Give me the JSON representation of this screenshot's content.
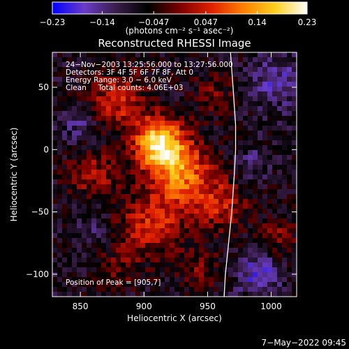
{
  "chart_data": {
    "type": "heatmap",
    "title": "Reconstructed RHESSI Image",
    "xlabel": "Heliocentric X (arcsec)",
    "ylabel": "Heliocentric Y (arcsec)",
    "xlim": [
      828,
      1020
    ],
    "ylim": [
      -118,
      78
    ],
    "x_ticks": [
      850,
      900,
      950,
      1000
    ],
    "y_ticks": [
      50,
      0,
      -50,
      -100
    ],
    "x_tick_labels": [
      "850",
      "900",
      "950",
      "1000"
    ],
    "y_tick_labels": [
      "50",
      "0",
      "−50",
      "−100"
    ],
    "grid": false,
    "colorbar": {
      "position": "top",
      "min": -0.23,
      "max": 0.23,
      "tick_labels": [
        "−0.23",
        "−0.14",
        "−0.047",
        "0.047",
        "0.14",
        "0.23"
      ],
      "tick_values": [
        -0.23,
        -0.14,
        -0.047,
        0.047,
        0.14,
        0.23
      ],
      "unit_label": "(photons cm⁻² s⁻¹ asec⁻²)",
      "colors": [
        "#0000ff",
        "#6a3cc8",
        "#3a1d4a",
        "#000000",
        "#7a0000",
        "#e02000",
        "#ff8000",
        "#ffd020",
        "#ffffff"
      ]
    },
    "annotations": [
      "24−Nov−2003 13:25:56.000 to 13:27:56.000",
      "Detectors: 3F 4F 5F 6F 7F 8F, Att 0",
      "Energy Range: 3.0 − 6.0 keV",
      "Clean     Total counts: 4.06E+03"
    ],
    "peak_label": "Position of Peak = [905,7]",
    "peak_position": [
      905,
      7
    ],
    "limb": [
      [
        968,
        78
      ],
      [
        970,
        50
      ],
      [
        972,
        20
      ],
      [
        972,
        0
      ],
      [
        971,
        -20
      ],
      [
        969,
        -50
      ],
      [
        966,
        -80
      ],
      [
        964,
        -100
      ],
      [
        963,
        -118
      ]
    ],
    "sources": [
      {
        "x": 912,
        "y": 5,
        "sigma": 14,
        "amp": 0.26
      },
      {
        "x": 930,
        "y": -20,
        "sigma": 18,
        "amp": 0.17
      },
      {
        "x": 880,
        "y": 40,
        "sigma": 16,
        "amp": 0.12
      },
      {
        "x": 905,
        "y": -60,
        "sigma": 18,
        "amp": 0.12
      },
      {
        "x": 960,
        "y": -45,
        "sigma": 15,
        "amp": 0.1
      },
      {
        "x": 860,
        "y": -20,
        "sigma": 14,
        "amp": 0.09
      },
      {
        "x": 1005,
        "y": -70,
        "sigma": 11,
        "amp": 0.07
      },
      {
        "x": 880,
        "y": -95,
        "sigma": 12,
        "amp": 0.05
      },
      {
        "x": 955,
        "y": 45,
        "sigma": 12,
        "amp": 0.06
      },
      {
        "x": 945,
        "y": -95,
        "sigma": 12,
        "amp": 0.06
      },
      {
        "x": 985,
        "y": -10,
        "sigma": 10,
        "amp": -0.05
      },
      {
        "x": 1005,
        "y": 55,
        "sigma": 15,
        "amp": -0.08
      },
      {
        "x": 850,
        "y": 20,
        "sigma": 10,
        "amp": -0.06
      },
      {
        "x": 990,
        "y": -100,
        "sigma": 12,
        "amp": -0.1
      },
      {
        "x": 860,
        "y": -60,
        "sigma": 10,
        "amp": -0.04
      }
    ]
  },
  "footer": {
    "timestamp": "7−May−2022 09:45"
  }
}
